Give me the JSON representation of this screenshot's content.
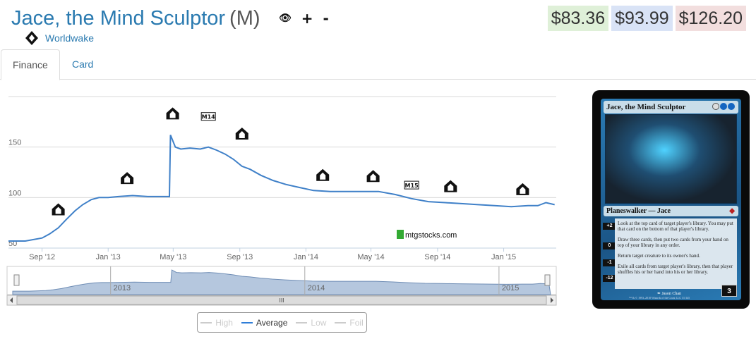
{
  "header": {
    "card_name": "Jace, the Mind Sculptor",
    "rarity": "(M)",
    "actions": {
      "eye": "👁",
      "plus": "+",
      "minus": "-"
    }
  },
  "set": {
    "name": "Worldwake",
    "icon": "worldwake-icon"
  },
  "prices": {
    "low": "$83.36",
    "avg": "$93.99",
    "high": "$126.20"
  },
  "tabs": [
    {
      "label": "Finance"
    },
    {
      "label": "Card"
    }
  ],
  "chart_data": {
    "type": "line",
    "watermark": "mtgstocks.com",
    "x_tick_labels": [
      "Sep '12",
      "Jan '13",
      "May '13",
      "Sep '13",
      "Jan '14",
      "May '14",
      "Sep '14",
      "Jan '15"
    ],
    "y_tick_labels": [
      "50",
      "100",
      "150"
    ],
    "ylim": [
      50,
      200
    ],
    "grid": true,
    "navigator_years": [
      "2013",
      "2014",
      "2015"
    ],
    "navigator_handle": "III",
    "series": [
      {
        "name": "Average",
        "x": [
          "2012-07-01",
          "2012-08-01",
          "2012-09-01",
          "2012-09-15",
          "2012-10-01",
          "2012-10-15",
          "2012-11-01",
          "2012-11-15",
          "2012-12-01",
          "2012-12-15",
          "2013-01-01",
          "2013-01-20",
          "2013-02-15",
          "2013-03-15",
          "2013-04-15",
          "2013-04-24",
          "2013-04-26",
          "2013-05-05",
          "2013-05-15",
          "2013-06-01",
          "2013-06-20",
          "2013-07-05",
          "2013-07-20",
          "2013-08-05",
          "2013-08-20",
          "2013-09-05",
          "2013-09-20",
          "2013-10-10",
          "2013-11-01",
          "2013-11-25",
          "2013-12-20",
          "2014-01-15",
          "2014-02-15",
          "2014-03-15",
          "2014-04-15",
          "2014-05-15",
          "2014-06-15",
          "2014-07-15",
          "2014-08-15",
          "2014-09-15",
          "2014-10-15",
          "2014-11-15",
          "2014-12-15",
          "2015-01-15",
          "2015-02-15",
          "2015-03-05",
          "2015-03-20",
          "2015-04-05"
        ],
        "values": [
          57,
          57,
          60,
          64,
          70,
          78,
          87,
          93,
          98,
          100,
          100,
          101,
          102,
          101,
          101,
          101,
          162,
          150,
          148,
          149,
          148,
          150,
          147,
          143,
          138,
          131,
          128,
          122,
          117,
          113,
          110,
          107,
          106,
          106,
          106,
          106,
          103,
          99,
          96,
          95,
          94,
          93,
          92,
          91,
          92,
          92,
          95,
          93
        ]
      }
    ],
    "set_markers": [
      {
        "date": "2012-10-01",
        "value": 88,
        "icon": "set-symbol-return-to-ravnica"
      },
      {
        "date": "2013-02-05",
        "value": 119,
        "icon": "set-symbol-gatecrash"
      },
      {
        "date": "2013-04-30",
        "value": 183,
        "icon": "set-symbol-dragons-maze"
      },
      {
        "date": "2013-07-05",
        "value": 180,
        "icon": "set-symbol-m14",
        "text": "M14"
      },
      {
        "date": "2013-09-05",
        "value": 163,
        "icon": "set-symbol-theros"
      },
      {
        "date": "2014-02-01",
        "value": 122,
        "icon": "set-symbol-born-of-the-gods"
      },
      {
        "date": "2014-05-05",
        "value": 121,
        "icon": "set-symbol-journey-into-nyx"
      },
      {
        "date": "2014-07-15",
        "value": 112,
        "icon": "set-symbol-m15",
        "text": "M15"
      },
      {
        "date": "2014-09-25",
        "value": 111,
        "icon": "set-symbol-khans-of-tarkir"
      },
      {
        "date": "2015-02-05",
        "value": 108,
        "icon": "set-symbol-fate-reforged"
      }
    ],
    "legend": [
      {
        "label": "High",
        "visible": false
      },
      {
        "label": "Average",
        "visible": true
      },
      {
        "label": "Low",
        "visible": false
      },
      {
        "label": "Foil",
        "visible": false
      }
    ]
  },
  "card_image": {
    "name": "Jace, the Mind Sculptor",
    "type_line": "Planeswalker — Jace",
    "abilities": [
      {
        "cost": "+2",
        "text": "Look at the top card of target player's library. You may put that card on the bottom of that player's library."
      },
      {
        "cost": "0",
        "text": "Draw three cards, then put two cards from your hand on top of your library in any order."
      },
      {
        "cost": "-1",
        "text": "Return target creature to its owner's hand."
      },
      {
        "cost": "-12",
        "text": "Exile all cards from target player's library, then that player shuffles his or her hand into his or her library."
      }
    ],
    "artist": "Jason Chan",
    "loyalty": "3",
    "copyright": "™ & © 1993–2010 Wizards of the Coast LLC 31/145",
    "mana_cost": "2",
    "set_symbol": "worldwake-symbol"
  }
}
